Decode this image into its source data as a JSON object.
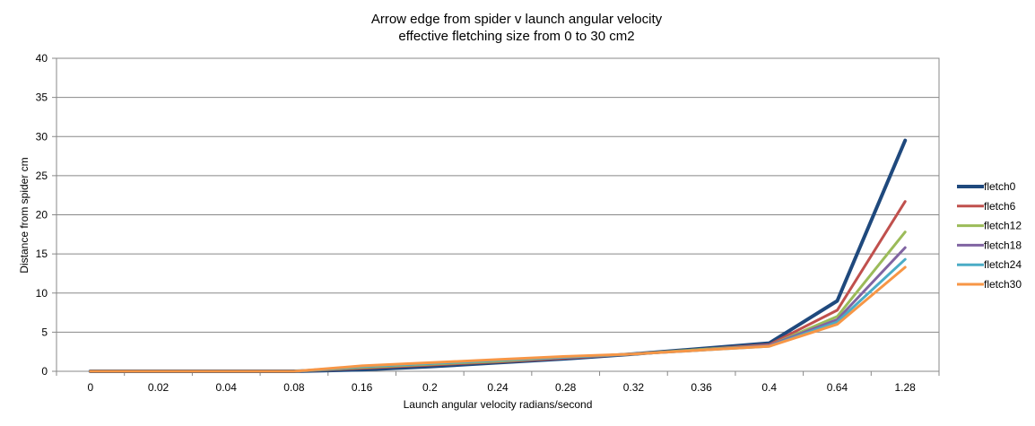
{
  "chart_data": {
    "type": "line",
    "title": "Arrow  edge from spider  v launch angular velocity",
    "subtitle": "effective fletching size from 0 to 30  cm2",
    "xlabel": "Launch angular  velocity radians/second",
    "ylabel": "Distance from spider cm",
    "ylim": [
      0,
      40
    ],
    "yticks": [
      0,
      5,
      10,
      15,
      20,
      25,
      30,
      35,
      40
    ],
    "grid": true,
    "legend_position": "right",
    "categories": [
      "0",
      "0.02",
      "0.04",
      "0.08",
      "0.16",
      "0.2",
      "0.24",
      "0.28",
      "0.32",
      "0.36",
      "0.4",
      "0.64",
      "1.28"
    ],
    "series": [
      {
        "name": "fletch0",
        "color": "#1f497d",
        "values": [
          0,
          0,
          0,
          0,
          0.2,
          0.6,
          1.1,
          1.6,
          2.2,
          2.9,
          3.6,
          9.0,
          29.5
        ]
      },
      {
        "name": "fletch6",
        "color": "#c0504d",
        "values": [
          0,
          0,
          0,
          0,
          0.4,
          0.8,
          1.2,
          1.7,
          2.2,
          2.8,
          3.4,
          7.8,
          21.7
        ]
      },
      {
        "name": "fletch12",
        "color": "#9bbb59",
        "values": [
          0,
          0,
          0,
          0,
          0.5,
          0.9,
          1.3,
          1.8,
          2.2,
          2.8,
          3.3,
          7.0,
          17.8
        ]
      },
      {
        "name": "fletch18",
        "color": "#8064a2",
        "values": [
          0,
          0,
          0,
          0,
          0.6,
          1.0,
          1.4,
          1.8,
          2.2,
          2.7,
          3.3,
          6.6,
          15.8
        ]
      },
      {
        "name": "fletch24",
        "color": "#4bacc6",
        "values": [
          0,
          0,
          0,
          0,
          0.6,
          1.0,
          1.4,
          1.8,
          2.2,
          2.7,
          3.2,
          6.3,
          14.3
        ]
      },
      {
        "name": "fletch30",
        "color": "#f79646",
        "values": [
          0,
          0,
          0,
          0,
          0.7,
          1.1,
          1.5,
          1.9,
          2.2,
          2.7,
          3.2,
          6.0,
          13.3
        ]
      }
    ]
  }
}
